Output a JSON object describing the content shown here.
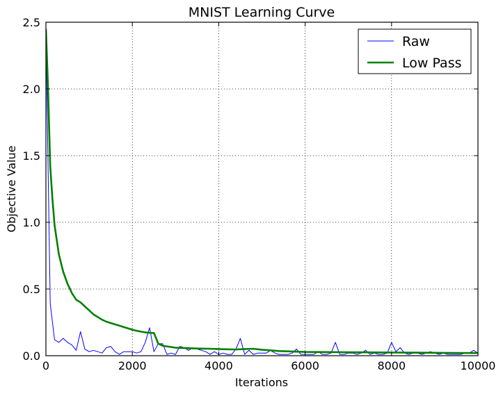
{
  "chart_data": {
    "type": "line",
    "title": "MNIST Learning Curve",
    "xlabel": "Iterations",
    "ylabel": "Objective Value",
    "xlim": [
      0,
      10000
    ],
    "ylim": [
      0,
      2.5
    ],
    "xticks": [
      0,
      2000,
      4000,
      6000,
      8000,
      10000
    ],
    "xtick_labels": [
      "0",
      "2000",
      "4000",
      "6000",
      "8000",
      "10000"
    ],
    "yticks": [
      0,
      0.5,
      1.0,
      1.5,
      2.0,
      2.5
    ],
    "ytick_labels": [
      "0.0",
      "0.5",
      "1.0",
      "1.5",
      "2.0",
      "2.5"
    ],
    "grid": true,
    "legend_position": "top-right",
    "series": [
      {
        "name": "Raw",
        "color": "#0000ff",
        "x": [
          0,
          100,
          200,
          300,
          400,
          500,
          600,
          700,
          800,
          900,
          1000,
          1100,
          1200,
          1300,
          1400,
          1500,
          1600,
          1700,
          1800,
          1900,
          2000,
          2100,
          2200,
          2300,
          2400,
          2500,
          2600,
          2700,
          2800,
          2900,
          3000,
          3100,
          3200,
          3300,
          3400,
          3500,
          3600,
          3700,
          3800,
          3900,
          4000,
          4100,
          4200,
          4300,
          4400,
          4500,
          4600,
          4700,
          4800,
          4900,
          5000,
          5100,
          5200,
          5300,
          5400,
          5500,
          5600,
          5700,
          5800,
          5900,
          6000,
          6100,
          6200,
          6300,
          6400,
          6500,
          6600,
          6700,
          6800,
          6900,
          7000,
          7100,
          7200,
          7300,
          7400,
          7500,
          7600,
          7700,
          7800,
          7900,
          8000,
          8100,
          8200,
          8300,
          8400,
          8500,
          8600,
          8700,
          8800,
          8900,
          9000,
          9100,
          9200,
          9300,
          9400,
          9500,
          9600,
          9700,
          9800,
          9900,
          10000
        ],
        "y": [
          2.45,
          0.39,
          0.12,
          0.1,
          0.13,
          0.1,
          0.08,
          0.04,
          0.18,
          0.05,
          0.03,
          0.04,
          0.03,
          0.02,
          0.06,
          0.07,
          0.03,
          0.01,
          0.03,
          0.03,
          0.03,
          0.02,
          0.03,
          0.1,
          0.21,
          0.03,
          0.09,
          0.09,
          0.01,
          0.02,
          0.01,
          0.07,
          0.06,
          0.04,
          0.06,
          0.05,
          0.04,
          0.03,
          0.01,
          0.03,
          0.01,
          0.02,
          0.01,
          0.01,
          0.05,
          0.13,
          0.01,
          0.04,
          0.01,
          0.02,
          0.02,
          0.02,
          0.04,
          0.02,
          0.01,
          0.01,
          0.01,
          0.02,
          0.05,
          0.01,
          0.01,
          0.01,
          0.01,
          0.03,
          0.01,
          0.01,
          0.02,
          0.1,
          0.01,
          0.01,
          0.02,
          0.02,
          0.01,
          0.02,
          0.04,
          0.01,
          0.02,
          0.01,
          0.01,
          0.02,
          0.1,
          0.03,
          0.06,
          0.02,
          0.01,
          0.02,
          0.02,
          0.01,
          0.02,
          0.03,
          0.02,
          0.01,
          0.02,
          0.01,
          0.01,
          0.01,
          0.01,
          0.02,
          0.02,
          0.04,
          0.02
        ]
      },
      {
        "name": "Low Pass",
        "color": "#008000",
        "x": [
          0,
          50,
          100,
          150,
          200,
          300,
          400,
          500,
          600,
          700,
          800,
          900,
          1000,
          1100,
          1200,
          1300,
          1400,
          1500,
          1600,
          1700,
          1800,
          1900,
          2000,
          2100,
          2200,
          2300,
          2400,
          2500,
          2600,
          2700,
          2800,
          2900,
          3000,
          3200,
          3400,
          3600,
          3800,
          4000,
          4200,
          4400,
          4600,
          4800,
          5000,
          5200,
          5400,
          5600,
          5800,
          6000,
          6500,
          7000,
          7500,
          8000,
          8500,
          9000,
          9500,
          10000
        ],
        "y": [
          2.45,
          2.0,
          1.42,
          1.18,
          0.98,
          0.76,
          0.63,
          0.54,
          0.47,
          0.42,
          0.4,
          0.37,
          0.34,
          0.31,
          0.29,
          0.27,
          0.255,
          0.245,
          0.235,
          0.225,
          0.215,
          0.205,
          0.195,
          0.187,
          0.18,
          0.175,
          0.172,
          0.17,
          0.09,
          0.075,
          0.07,
          0.065,
          0.06,
          0.058,
          0.055,
          0.053,
          0.052,
          0.05,
          0.048,
          0.047,
          0.05,
          0.052,
          0.045,
          0.04,
          0.035,
          0.033,
          0.03,
          0.028,
          0.027,
          0.026,
          0.025,
          0.024,
          0.023,
          0.022,
          0.021,
          0.02
        ]
      }
    ]
  }
}
